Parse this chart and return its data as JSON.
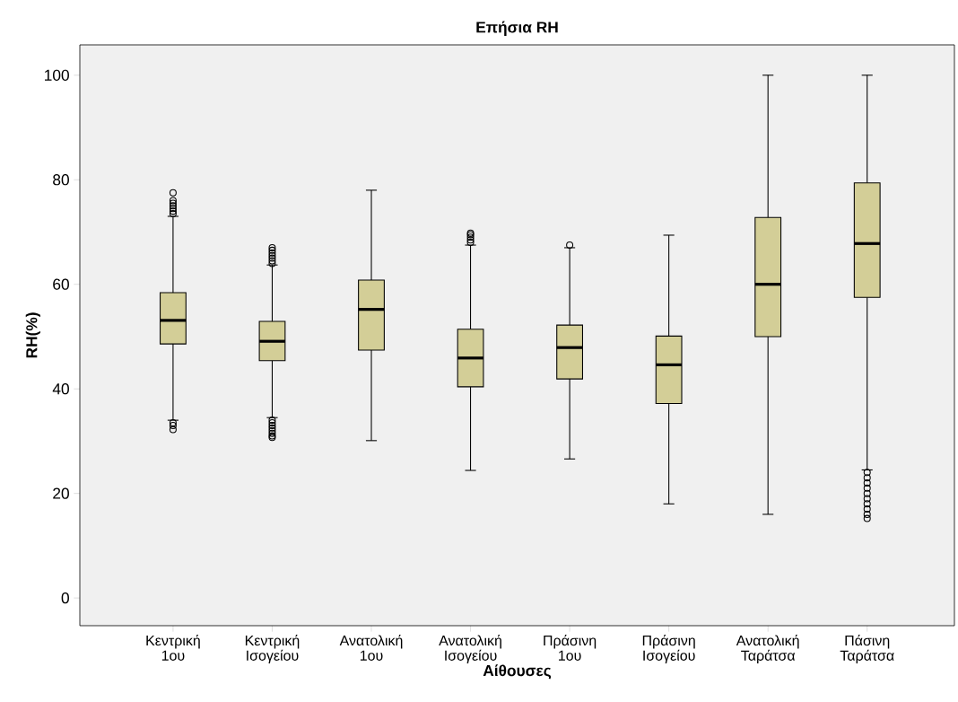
{
  "chart_data": {
    "type": "box",
    "title": "Επήσια RH",
    "xlabel": "Αίθουσες",
    "ylabel": "RH(%)",
    "categories": [
      "Κεντρική 1ου",
      "Κεντρική Ισογείου",
      "Ανατολική 1ου",
      "Ανατολική Ισογείου",
      "Πράσινη 1ου",
      "Πράσινη Ισογείου",
      "Ανατολική Ταράτσα",
      "Πάσινη Ταράτσα"
    ],
    "color": "#d3ce97",
    "marker": "circle",
    "grid": false,
    "ylim": [
      -5.3,
      105.8
    ],
    "yticks": [
      0,
      20,
      40,
      60,
      80,
      100
    ],
    "boxes": [
      {
        "low": 34,
        "q1": 48.6,
        "median": 53.1,
        "q3": 58.4,
        "high": 73,
        "outliers": [
          73.5,
          74,
          74.5,
          75,
          75.5,
          76,
          77.5,
          33.5,
          33,
          32.2
        ]
      },
      {
        "low": 34.5,
        "q1": 45.4,
        "median": 49.1,
        "q3": 52.9,
        "high": 63.7,
        "outliers": [
          64,
          64.5,
          65,
          65.5,
          66,
          66.5,
          67,
          34,
          33.5,
          33,
          32.5,
          32,
          31.5,
          31,
          30.7
        ]
      },
      {
        "low": 30.1,
        "q1": 47.4,
        "median": 55.2,
        "q3": 60.8,
        "high": 78
      },
      {
        "low": 24.4,
        "q1": 40.4,
        "median": 45.9,
        "q3": 51.4,
        "high": 67.5,
        "outliers": [
          68,
          68.5,
          69,
          69.5,
          69.8
        ]
      },
      {
        "low": 26.6,
        "q1": 41.9,
        "median": 47.9,
        "q3": 52.2,
        "high": 67,
        "outliers": [
          67.5
        ]
      },
      {
        "low": 18,
        "q1": 37.2,
        "median": 44.6,
        "q3": 50.1,
        "high": 69.4
      },
      {
        "low": 16,
        "q1": 50,
        "median": 60,
        "q3": 72.8,
        "high": 100
      },
      {
        "low": 24.5,
        "q1": 57.5,
        "median": 67.8,
        "q3": 79.4,
        "high": 100,
        "outliers": [
          24,
          23,
          22,
          21,
          20,
          19,
          18,
          17,
          16,
          15.2
        ]
      }
    ]
  }
}
